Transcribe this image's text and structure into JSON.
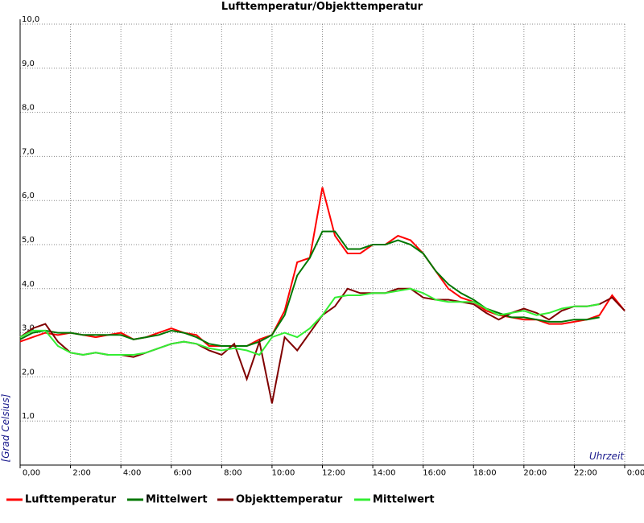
{
  "chart_data": {
    "type": "line",
    "title": "Lufttemperatur/Objekttemperatur",
    "x_label": "Uhrzeit",
    "y_label": "[Grad Celsius]",
    "x": [
      0,
      0.5,
      1,
      1.5,
      2,
      2.5,
      3,
      3.5,
      4,
      4.5,
      5,
      5.5,
      6,
      6.5,
      7,
      7.5,
      8,
      8.5,
      9,
      9.5,
      10,
      10.5,
      11,
      11.5,
      12,
      12.5,
      13,
      13.5,
      14,
      14.5,
      15,
      15.5,
      16,
      16.5,
      17,
      17.5,
      18,
      18.5,
      19,
      19.5,
      20,
      20.5,
      21,
      21.5,
      22,
      22.5,
      23,
      23.5,
      24
    ],
    "series": [
      {
        "name": "Lufttemperatur",
        "color": "#ff0000",
        "values": [
          2.8,
          2.9,
          3.0,
          2.95,
          3.0,
          2.95,
          2.9,
          2.95,
          3.0,
          2.85,
          2.9,
          3.0,
          3.1,
          3.0,
          2.95,
          2.7,
          2.7,
          2.7,
          2.7,
          2.85,
          2.95,
          3.5,
          4.6,
          4.7,
          6.3,
          5.2,
          4.8,
          4.8,
          5.0,
          5.0,
          5.2,
          5.1,
          4.8,
          4.4,
          4.0,
          3.8,
          3.7,
          3.5,
          3.4,
          3.35,
          3.3,
          3.3,
          3.2,
          3.2,
          3.25,
          3.3,
          3.4,
          3.85,
          3.5
        ]
      },
      {
        "name": "Mittelwert",
        "color": "#007700",
        "values": [
          2.85,
          3.0,
          3.05,
          3.0,
          3.0,
          2.95,
          2.95,
          2.95,
          2.95,
          2.85,
          2.9,
          2.95,
          3.05,
          3.0,
          2.9,
          2.75,
          2.7,
          2.7,
          2.7,
          2.8,
          2.95,
          3.4,
          4.3,
          4.7,
          5.3,
          5.3,
          4.9,
          4.9,
          5.0,
          5.0,
          5.1,
          5.0,
          4.8,
          4.4,
          4.1,
          3.9,
          3.75,
          3.55,
          3.45,
          3.35,
          3.35,
          3.3,
          3.25,
          3.25,
          3.3,
          3.3,
          3.35,
          null,
          null
        ]
      },
      {
        "name": "Objekttemperatur",
        "color": "#800000",
        "values": [
          2.9,
          3.1,
          3.2,
          2.8,
          2.55,
          2.5,
          2.55,
          2.5,
          2.5,
          2.45,
          2.55,
          2.65,
          2.75,
          2.8,
          2.75,
          2.6,
          2.5,
          2.75,
          1.95,
          2.8,
          1.4,
          2.9,
          2.6,
          3.0,
          3.4,
          3.6,
          4.0,
          3.9,
          3.9,
          3.9,
          4.0,
          4.0,
          3.8,
          3.75,
          3.75,
          3.7,
          3.65,
          3.45,
          3.3,
          3.45,
          3.55,
          3.45,
          3.3,
          3.5,
          3.6,
          3.6,
          3.65,
          3.8,
          3.5
        ]
      },
      {
        "name": "Mittelwert",
        "color": "#33ee33",
        "values": [
          2.9,
          3.05,
          3.05,
          2.7,
          2.55,
          2.5,
          2.55,
          2.5,
          2.5,
          2.5,
          2.55,
          2.65,
          2.75,
          2.8,
          2.75,
          2.65,
          2.6,
          2.65,
          2.6,
          2.5,
          2.9,
          3.0,
          2.9,
          3.1,
          3.4,
          3.8,
          3.85,
          3.85,
          3.9,
          3.9,
          3.95,
          4.0,
          3.9,
          3.75,
          3.7,
          3.7,
          3.7,
          3.55,
          3.4,
          3.45,
          3.5,
          3.4,
          3.45,
          3.55,
          3.6,
          3.6,
          3.65,
          null,
          null
        ]
      }
    ],
    "xlim": [
      0,
      24
    ],
    "xticks": [
      {
        "value": 0,
        "label": "0,00"
      },
      {
        "value": 2,
        "label": "2:00"
      },
      {
        "value": 4,
        "label": "4:00"
      },
      {
        "value": 6,
        "label": "6:00"
      },
      {
        "value": 8,
        "label": "8:00"
      },
      {
        "value": 10,
        "label": "10:00"
      },
      {
        "value": 12,
        "label": "12:00"
      },
      {
        "value": 14,
        "label": "14:00"
      },
      {
        "value": 16,
        "label": "16:00"
      },
      {
        "value": 18,
        "label": "18:00"
      },
      {
        "value": 20,
        "label": "20:00"
      },
      {
        "value": 22,
        "label": "22:00"
      },
      {
        "value": 24,
        "label": "0:00"
      }
    ],
    "ylim": [
      0,
      10
    ],
    "yticks": [
      {
        "value": 1,
        "label": "1,0"
      },
      {
        "value": 2,
        "label": "2,0"
      },
      {
        "value": 3,
        "label": "3,0"
      },
      {
        "value": 4,
        "label": "4,0"
      },
      {
        "value": 5,
        "label": "5,0"
      },
      {
        "value": 6,
        "label": "6,0"
      },
      {
        "value": 7,
        "label": "7,0"
      },
      {
        "value": 8,
        "label": "8,0"
      },
      {
        "value": 9,
        "label": "9,0"
      },
      {
        "value": 10,
        "label": "10,0"
      }
    ],
    "grid": true
  }
}
